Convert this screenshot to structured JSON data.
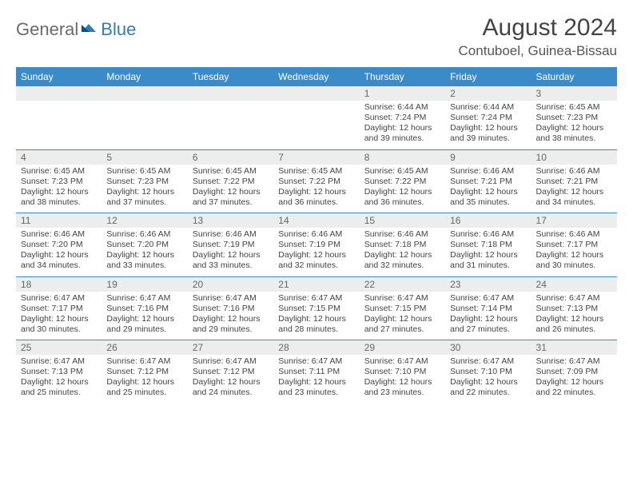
{
  "logo": {
    "text1": "General",
    "text2": "Blue"
  },
  "title": "August 2024",
  "location": "Contuboel, Guinea-Bissau",
  "colors": {
    "header_bg": "#3b8bc8",
    "header_text": "#ffffff",
    "daynum_bg": "#eceded",
    "divider": "#3b8bc8",
    "logo_gray": "#6a6a6a",
    "logo_blue": "#2f7bbf"
  },
  "dayNames": [
    "Sunday",
    "Monday",
    "Tuesday",
    "Wednesday",
    "Thursday",
    "Friday",
    "Saturday"
  ],
  "weeks": [
    [
      null,
      null,
      null,
      null,
      {
        "n": "1",
        "sr": "6:44 AM",
        "ss": "7:24 PM",
        "dl": "12 hours and 39 minutes."
      },
      {
        "n": "2",
        "sr": "6:44 AM",
        "ss": "7:24 PM",
        "dl": "12 hours and 39 minutes."
      },
      {
        "n": "3",
        "sr": "6:45 AM",
        "ss": "7:23 PM",
        "dl": "12 hours and 38 minutes."
      }
    ],
    [
      {
        "n": "4",
        "sr": "6:45 AM",
        "ss": "7:23 PM",
        "dl": "12 hours and 38 minutes."
      },
      {
        "n": "5",
        "sr": "6:45 AM",
        "ss": "7:23 PM",
        "dl": "12 hours and 37 minutes."
      },
      {
        "n": "6",
        "sr": "6:45 AM",
        "ss": "7:22 PM",
        "dl": "12 hours and 37 minutes."
      },
      {
        "n": "7",
        "sr": "6:45 AM",
        "ss": "7:22 PM",
        "dl": "12 hours and 36 minutes."
      },
      {
        "n": "8",
        "sr": "6:45 AM",
        "ss": "7:22 PM",
        "dl": "12 hours and 36 minutes."
      },
      {
        "n": "9",
        "sr": "6:46 AM",
        "ss": "7:21 PM",
        "dl": "12 hours and 35 minutes."
      },
      {
        "n": "10",
        "sr": "6:46 AM",
        "ss": "7:21 PM",
        "dl": "12 hours and 34 minutes."
      }
    ],
    [
      {
        "n": "11",
        "sr": "6:46 AM",
        "ss": "7:20 PM",
        "dl": "12 hours and 34 minutes."
      },
      {
        "n": "12",
        "sr": "6:46 AM",
        "ss": "7:20 PM",
        "dl": "12 hours and 33 minutes."
      },
      {
        "n": "13",
        "sr": "6:46 AM",
        "ss": "7:19 PM",
        "dl": "12 hours and 33 minutes."
      },
      {
        "n": "14",
        "sr": "6:46 AM",
        "ss": "7:19 PM",
        "dl": "12 hours and 32 minutes."
      },
      {
        "n": "15",
        "sr": "6:46 AM",
        "ss": "7:18 PM",
        "dl": "12 hours and 32 minutes."
      },
      {
        "n": "16",
        "sr": "6:46 AM",
        "ss": "7:18 PM",
        "dl": "12 hours and 31 minutes."
      },
      {
        "n": "17",
        "sr": "6:46 AM",
        "ss": "7:17 PM",
        "dl": "12 hours and 30 minutes."
      }
    ],
    [
      {
        "n": "18",
        "sr": "6:47 AM",
        "ss": "7:17 PM",
        "dl": "12 hours and 30 minutes."
      },
      {
        "n": "19",
        "sr": "6:47 AM",
        "ss": "7:16 PM",
        "dl": "12 hours and 29 minutes."
      },
      {
        "n": "20",
        "sr": "6:47 AM",
        "ss": "7:16 PM",
        "dl": "12 hours and 29 minutes."
      },
      {
        "n": "21",
        "sr": "6:47 AM",
        "ss": "7:15 PM",
        "dl": "12 hours and 28 minutes."
      },
      {
        "n": "22",
        "sr": "6:47 AM",
        "ss": "7:15 PM",
        "dl": "12 hours and 27 minutes."
      },
      {
        "n": "23",
        "sr": "6:47 AM",
        "ss": "7:14 PM",
        "dl": "12 hours and 27 minutes."
      },
      {
        "n": "24",
        "sr": "6:47 AM",
        "ss": "7:13 PM",
        "dl": "12 hours and 26 minutes."
      }
    ],
    [
      {
        "n": "25",
        "sr": "6:47 AM",
        "ss": "7:13 PM",
        "dl": "12 hours and 25 minutes."
      },
      {
        "n": "26",
        "sr": "6:47 AM",
        "ss": "7:12 PM",
        "dl": "12 hours and 25 minutes."
      },
      {
        "n": "27",
        "sr": "6:47 AM",
        "ss": "7:12 PM",
        "dl": "12 hours and 24 minutes."
      },
      {
        "n": "28",
        "sr": "6:47 AM",
        "ss": "7:11 PM",
        "dl": "12 hours and 23 minutes."
      },
      {
        "n": "29",
        "sr": "6:47 AM",
        "ss": "7:10 PM",
        "dl": "12 hours and 23 minutes."
      },
      {
        "n": "30",
        "sr": "6:47 AM",
        "ss": "7:10 PM",
        "dl": "12 hours and 22 minutes."
      },
      {
        "n": "31",
        "sr": "6:47 AM",
        "ss": "7:09 PM",
        "dl": "12 hours and 22 minutes."
      }
    ]
  ],
  "labels": {
    "sunrise": "Sunrise: ",
    "sunset": "Sunset: ",
    "daylight": "Daylight: "
  }
}
